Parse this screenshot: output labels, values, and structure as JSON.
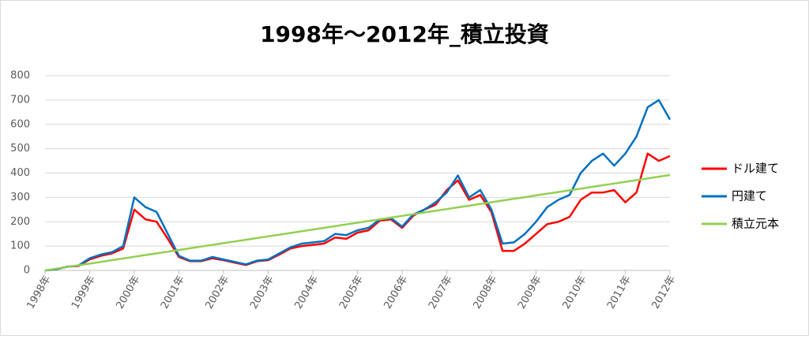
{
  "chart_data": {
    "type": "line",
    "title": "1998年～2012年_積立投資",
    "categories": [
      "1998年",
      null,
      null,
      null,
      "1999年",
      null,
      null,
      null,
      "2000年",
      null,
      null,
      null,
      "2001年",
      null,
      null,
      null,
      "2002年",
      null,
      null,
      null,
      "2003年",
      null,
      null,
      null,
      "2004年",
      null,
      null,
      null,
      "2005年",
      null,
      null,
      null,
      "2006年",
      null,
      null,
      null,
      "2007年",
      null,
      null,
      null,
      "2008年",
      null,
      null,
      null,
      "2009年",
      null,
      null,
      null,
      "2010年",
      null,
      null,
      null,
      "2011年",
      null,
      null,
      null,
      "2012年"
    ],
    "series": [
      {
        "name": "ドル建て",
        "color": "#ff0000",
        "values": [
          0,
          5,
          15,
          18,
          45,
          60,
          70,
          90,
          250,
          210,
          200,
          130,
          55,
          38,
          38,
          50,
          42,
          32,
          22,
          38,
          42,
          65,
          90,
          100,
          105,
          110,
          135,
          130,
          155,
          165,
          205,
          210,
          175,
          225,
          250,
          270,
          330,
          370,
          290,
          310,
          240,
          80,
          80,
          110,
          150,
          190,
          200,
          220,
          290,
          320,
          320,
          330,
          280,
          320,
          480,
          450,
          470
        ]
      },
      {
        "name": "円建て",
        "color": "#0070c0",
        "values": [
          0,
          5,
          15,
          20,
          50,
          65,
          75,
          100,
          300,
          260,
          240,
          150,
          60,
          40,
          40,
          55,
          45,
          35,
          25,
          40,
          45,
          70,
          95,
          110,
          115,
          120,
          150,
          145,
          165,
          175,
          210,
          215,
          180,
          230,
          250,
          280,
          320,
          390,
          300,
          330,
          250,
          110,
          115,
          150,
          200,
          260,
          290,
          310,
          400,
          450,
          480,
          430,
          480,
          550,
          670,
          700,
          620
        ]
      },
      {
        "name": "積立元本",
        "color": "#92d050",
        "values": [
          0,
          7,
          14,
          21,
          28,
          35,
          42,
          49,
          56,
          63,
          70,
          77,
          84,
          91,
          98,
          105,
          112,
          119,
          126,
          133,
          140,
          147,
          154,
          161,
          168,
          175,
          182,
          189,
          196,
          203,
          210,
          217,
          224,
          231,
          238,
          245,
          252,
          259,
          266,
          273,
          280,
          287,
          294,
          301,
          308,
          315,
          322,
          329,
          336,
          343,
          350,
          357,
          364,
          371,
          378,
          385,
          392
        ]
      }
    ],
    "ylim": [
      0,
      800
    ],
    "yticks": [
      0,
      100,
      200,
      300,
      400,
      500,
      600,
      700,
      800
    ],
    "grid": true,
    "legend": "right"
  }
}
